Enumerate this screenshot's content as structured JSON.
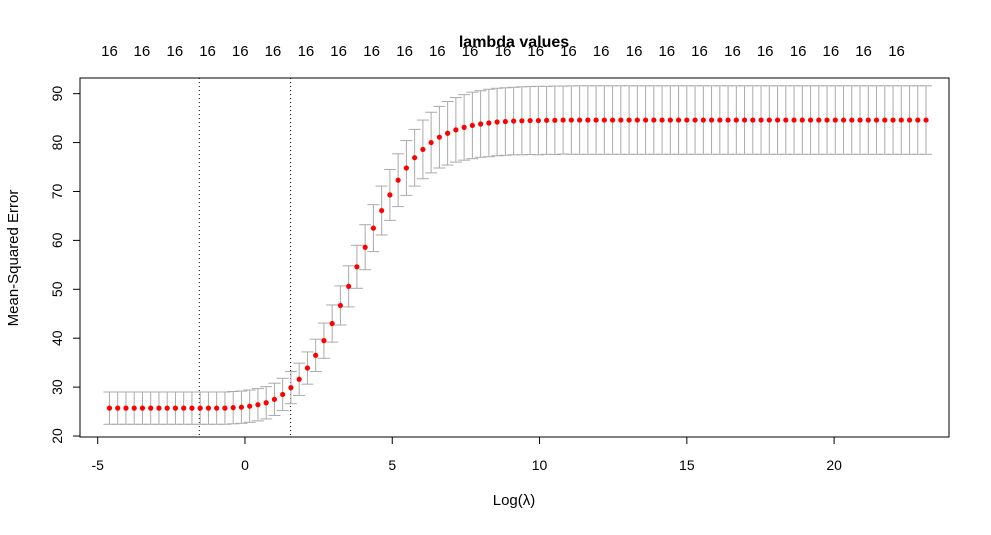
{
  "chart_data": {
    "type": "scatter",
    "title": "lambda values",
    "xlabel": "Log(λ)",
    "ylabel": "Mean-Squared Error",
    "xlim": [
      -5.6,
      23.9
    ],
    "ylim": [
      19.8,
      93.2
    ],
    "x_ticks": [
      "-5",
      "0",
      "5",
      "10",
      "15",
      "20"
    ],
    "y_ticks": [
      "20",
      "30",
      "40",
      "50",
      "60",
      "70",
      "80",
      "90"
    ],
    "top_axis_labels": [
      "16",
      "16",
      "16",
      "16",
      "16",
      "16",
      "16",
      "16",
      "16",
      "16",
      "16",
      "16",
      "16",
      "16",
      "16",
      "16",
      "16",
      "16",
      "16",
      "16",
      "16",
      "16",
      "16",
      "16",
      "16"
    ],
    "top_axis_positions": [
      -4.6,
      -3.5,
      -2.38,
      -1.27,
      -0.16,
      0.95,
      2.07,
      3.18,
      4.3,
      5.42,
      6.53,
      7.64,
      8.76,
      9.87,
      10.98,
      12.09,
      13.21,
      14.32,
      15.43,
      16.55,
      17.66,
      18.78,
      19.89,
      21.0,
      22.12
    ],
    "vlines": [
      -1.55,
      1.55
    ],
    "grid": false,
    "legend": "none",
    "point_color": "#ff0000",
    "error_bar_color": "#aaaaaa",
    "series": [
      {
        "x": [
          -4.6,
          -4.32,
          -4.04,
          -3.76,
          -3.48,
          -3.2,
          -2.92,
          -2.64,
          -2.36,
          -2.08,
          -1.8,
          -1.52,
          -1.24,
          -0.96,
          -0.68,
          -0.4,
          -0.12,
          0.16,
          0.44,
          0.72,
          1.0,
          1.28,
          1.56,
          1.84,
          2.12,
          2.4,
          2.68,
          2.96,
          3.24,
          3.52,
          3.8,
          4.08,
          4.36,
          4.64,
          4.92,
          5.2,
          5.48,
          5.76,
          6.04,
          6.32,
          6.6,
          6.88,
          7.16,
          7.44,
          7.72,
          8.0,
          8.28,
          8.56,
          8.84,
          9.12,
          9.4,
          9.68,
          9.96,
          10.24,
          10.52,
          10.8,
          11.08,
          11.36,
          11.64,
          11.92,
          12.2,
          12.48,
          12.76,
          13.04,
          13.32,
          13.6,
          13.88,
          14.16,
          14.44,
          14.72,
          15.0,
          15.28,
          15.56,
          15.84,
          16.12,
          16.4,
          16.68,
          16.96,
          17.24,
          17.52,
          17.8,
          18.08,
          18.36,
          18.64,
          18.92,
          19.2,
          19.48,
          19.76,
          20.04,
          20.32,
          20.6,
          20.88,
          21.16,
          21.44,
          21.72,
          22.0,
          22.28,
          22.56,
          22.84,
          23.12
        ],
        "y": [
          25.7,
          25.7,
          25.7,
          25.7,
          25.7,
          25.7,
          25.7,
          25.7,
          25.7,
          25.7,
          25.7,
          25.7,
          25.7,
          25.7,
          25.7,
          25.8,
          25.9,
          26.1,
          26.4,
          26.8,
          27.5,
          28.5,
          29.9,
          31.6,
          33.9,
          36.5,
          39.5,
          43.0,
          46.7,
          50.6,
          54.6,
          58.6,
          62.5,
          66.1,
          69.3,
          72.3,
          74.8,
          76.9,
          78.6,
          80.0,
          81.1,
          81.9,
          82.6,
          83.1,
          83.5,
          83.8,
          84.0,
          84.2,
          84.3,
          84.4,
          84.45,
          84.5,
          84.5,
          84.55,
          84.55,
          84.6,
          84.6,
          84.6,
          84.6,
          84.6,
          84.6,
          84.6,
          84.6,
          84.6,
          84.6,
          84.6,
          84.6,
          84.6,
          84.6,
          84.6,
          84.6,
          84.6,
          84.6,
          84.6,
          84.6,
          84.6,
          84.6,
          84.6,
          84.6,
          84.6,
          84.6,
          84.6,
          84.6,
          84.6,
          84.6,
          84.6,
          84.6,
          84.6,
          84.6,
          84.6,
          84.6,
          84.6,
          84.6,
          84.6,
          84.6,
          84.6,
          84.6,
          84.6,
          84.6,
          84.6
        ],
        "upper": [
          29.0,
          29.0,
          29.0,
          29.0,
          29.0,
          29.0,
          29.0,
          29.0,
          29.0,
          29.0,
          29.0,
          29.0,
          29.0,
          29.0,
          29.0,
          29.1,
          29.2,
          29.4,
          29.7,
          30.1,
          30.8,
          31.8,
          33.2,
          34.9,
          37.2,
          39.8,
          43.1,
          46.8,
          50.7,
          54.8,
          59.0,
          63.2,
          67.3,
          71.1,
          74.5,
          77.7,
          80.4,
          82.7,
          84.6,
          86.2,
          87.4,
          88.4,
          89.2,
          89.8,
          90.3,
          90.6,
          90.9,
          91.1,
          91.2,
          91.3,
          91.4,
          91.45,
          91.5,
          91.5,
          91.55,
          91.55,
          91.6,
          91.6,
          91.6,
          91.6,
          91.6,
          91.6,
          91.6,
          91.6,
          91.6,
          91.6,
          91.6,
          91.6,
          91.6,
          91.6,
          91.6,
          91.6,
          91.6,
          91.6,
          91.6,
          91.6,
          91.6,
          91.6,
          91.6,
          91.6,
          91.6,
          91.6,
          91.6,
          91.6,
          91.6,
          91.6,
          91.6,
          91.6,
          91.6,
          91.6,
          91.6,
          91.6,
          91.6,
          91.6,
          91.6,
          91.6,
          91.6,
          91.6,
          91.6,
          91.6
        ],
        "lower": [
          22.4,
          22.4,
          22.4,
          22.4,
          22.4,
          22.4,
          22.4,
          22.4,
          22.4,
          22.4,
          22.4,
          22.4,
          22.4,
          22.4,
          22.4,
          22.5,
          22.6,
          22.8,
          23.1,
          23.5,
          24.2,
          25.2,
          26.6,
          28.3,
          30.6,
          33.2,
          35.9,
          39.2,
          42.7,
          46.4,
          50.2,
          54.0,
          57.7,
          61.1,
          64.1,
          66.9,
          69.2,
          71.1,
          72.6,
          73.8,
          74.8,
          75.4,
          76.0,
          76.4,
          76.7,
          77.0,
          77.1,
          77.3,
          77.4,
          77.5,
          77.5,
          77.55,
          77.5,
          77.6,
          77.55,
          77.65,
          77.6,
          77.6,
          77.6,
          77.6,
          77.6,
          77.6,
          77.6,
          77.6,
          77.6,
          77.6,
          77.6,
          77.6,
          77.6,
          77.6,
          77.6,
          77.6,
          77.6,
          77.6,
          77.6,
          77.6,
          77.6,
          77.6,
          77.6,
          77.6,
          77.6,
          77.6,
          77.6,
          77.6,
          77.6,
          77.6,
          77.6,
          77.6,
          77.6,
          77.6,
          77.6,
          77.6,
          77.6,
          77.6,
          77.6,
          77.6,
          77.6,
          77.6,
          77.6,
          77.6
        ]
      }
    ]
  }
}
